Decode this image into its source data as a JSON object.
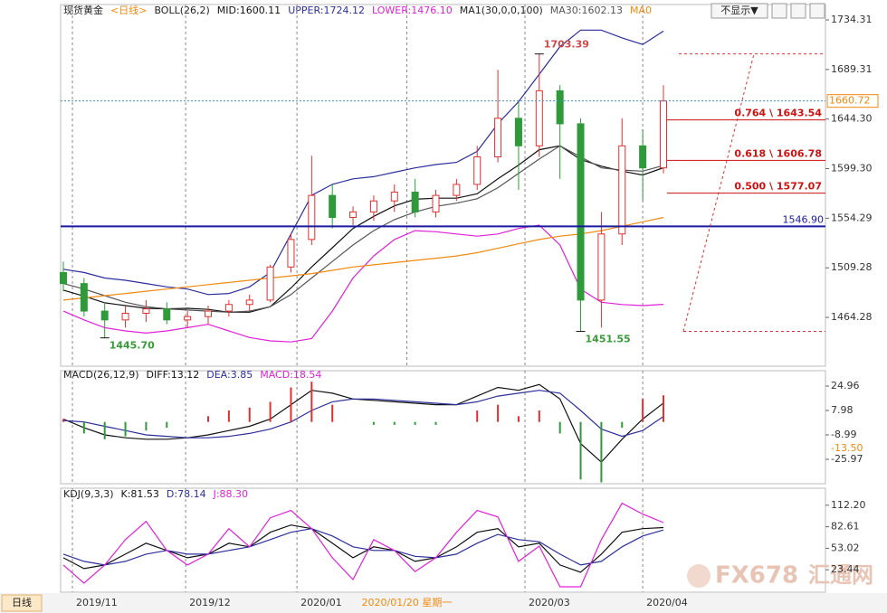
{
  "toolbar": {
    "hide_button": "不显示▼",
    "period_tab": "日线"
  },
  "watermark": {
    "brand": "FX678",
    "cn": "汇通网"
  },
  "chart_data": [
    {
      "type": "candlestick",
      "title": "现货黄金",
      "subtitle": "<日线>",
      "indicators": [
        "BOLL(26,2)",
        "MA1(30,0,0,100)"
      ],
      "x": [
        0,
        1,
        2,
        3,
        4,
        5,
        6,
        7,
        8,
        9,
        10,
        11,
        12,
        13,
        14,
        15,
        16,
        17,
        18,
        19,
        20,
        21,
        22,
        23,
        24,
        25,
        26,
        27,
        28,
        29
      ],
      "xlim": [
        -0.13,
        36.83
      ],
      "xticks": [
        {
          "value": 0.44,
          "label": "2019/11"
        },
        {
          "value": 5.91,
          "label": "2019/12"
        },
        {
          "value": 11.29,
          "label": "2020/01"
        },
        {
          "value": 22.31,
          "label": "2020/03"
        },
        {
          "value": 28.0,
          "label": "2020/04"
        }
      ],
      "cursor": {
        "x": 16.6,
        "label": "2020/01/20 星期一"
      },
      "ylim": [
        1420,
        1748.26
      ],
      "yticks": [
        1734.31,
        1689.31,
        {
          "value": 1644.3,
          "label": "1644.30"
        },
        {
          "value": 1599.3,
          "label": "1599.30"
        },
        1554.29,
        1509.28,
        1464.28
      ],
      "candles": {
        "up_color": "#e03030",
        "down_color": "#2e9a3a",
        "open": [
          1505,
          1495,
          1470,
          1462,
          1468,
          1472,
          1462,
          1465,
          1470,
          1476,
          1480,
          1510,
          1535,
          1575,
          1555,
          1560,
          1570,
          1578,
          1560,
          1575,
          1585,
          1610,
          1645,
          1620,
          1670,
          1640,
          1480,
          1540,
          1620,
          1600
        ],
        "high": [
          1515,
          1500,
          1478,
          1475,
          1480,
          1478,
          1470,
          1475,
          1480,
          1485,
          1512,
          1540,
          1611,
          1585,
          1565,
          1575,
          1585,
          1590,
          1580,
          1590,
          1620,
          1689,
          1660,
          1703.39,
          1675,
          1645,
          1560,
          1645,
          1635,
          1675
        ],
        "low": [
          1488,
          1465,
          1445.7,
          1455,
          1460,
          1458,
          1455,
          1458,
          1465,
          1470,
          1478,
          1505,
          1530,
          1545,
          1548,
          1552,
          1560,
          1555,
          1555,
          1570,
          1580,
          1605,
          1580,
          1610,
          1590,
          1451.55,
          1455,
          1530,
          1570,
          1595
        ],
        "close": [
          1495,
          1470,
          1462,
          1468,
          1472,
          1462,
          1465,
          1470,
          1476,
          1480,
          1510,
          1535,
          1575,
          1555,
          1560,
          1570,
          1578,
          1560,
          1575,
          1585,
          1610,
          1645,
          1620,
          1670,
          1640,
          1480,
          1540,
          1620,
          1600,
          1660.72
        ]
      },
      "series": [
        {
          "name": "MID:1600.11",
          "color": "#111111",
          "values": [
            1489,
            1483.5,
            1477.5,
            1475,
            1472.5,
            1472,
            1472.5,
            1471.5,
            1469,
            1469,
            1474,
            1491,
            1510,
            1527.5,
            1545,
            1556,
            1565.5,
            1571.5,
            1572.5,
            1572.5,
            1576.5,
            1590,
            1602.5,
            1616.5,
            1620,
            1607.5,
            1601.5,
            1597,
            1593.5,
            1600.11
          ]
        },
        {
          "name": "UPPER:1724.12",
          "color": "#2b2f9a",
          "values": [
            1508,
            1505,
            1500,
            1498,
            1495,
            1492,
            1490,
            1485,
            1486,
            1492,
            1505,
            1540,
            1575,
            1585,
            1590,
            1592,
            1596,
            1600,
            1603,
            1605,
            1615,
            1640,
            1660,
            1685,
            1710,
            1725,
            1725,
            1718,
            1712,
            1724.12
          ]
        },
        {
          "name": "LOWER:1476.10",
          "color": "#e020d8",
          "values": [
            1470,
            1462,
            1455,
            1452,
            1450,
            1452,
            1455,
            1458,
            1452,
            1446,
            1443,
            1442,
            1445,
            1470,
            1500,
            1520,
            1535,
            1543,
            1542,
            1540,
            1538,
            1540,
            1545,
            1548,
            1530,
            1490,
            1478,
            1476,
            1475,
            1476.1
          ]
        },
        {
          "name": "MA30:1602.13",
          "color": "#555555",
          "values": [
            1495,
            1490,
            1484,
            1478,
            1474,
            1472,
            1471,
            1470,
            1469,
            1470,
            1474,
            1485,
            1500,
            1515,
            1530,
            1543,
            1553,
            1560,
            1565,
            1568,
            1572,
            1582,
            1595,
            1608,
            1620,
            1610,
            1600,
            1598,
            1597,
            1602.13
          ]
        },
        {
          "name": "MA0",
          "color": "#f08a10",
          "values": [
            1480,
            1482,
            1484,
            1486,
            1488,
            1490,
            1492,
            1494,
            1496,
            1498,
            1500,
            1502,
            1504,
            1507,
            1510,
            1512,
            1514,
            1516,
            1518,
            1520,
            1523,
            1527,
            1531,
            1535,
            1538,
            1540,
            1543,
            1547,
            1551,
            1555
          ]
        }
      ],
      "levels": [
        {
          "value": 1643.54,
          "label": "0.764 \\ 1643.54",
          "color": "#cc1111"
        },
        {
          "value": 1606.78,
          "label": "0.618 \\ 1606.78",
          "color": "#cc1111"
        },
        {
          "value": 1577.07,
          "label": "0.500 \\ 1577.07",
          "color": "#cc1111"
        }
      ],
      "support": {
        "value": 1546.9,
        "label": "1546.90",
        "color": "#1a1aa0"
      },
      "last_price": {
        "value": 1660.72,
        "label": "1660.72",
        "color": "#f08a10"
      },
      "annotations": [
        {
          "x": 23,
          "value": 1703.39,
          "label": "1703.39",
          "color": "#d04848"
        },
        {
          "x": 2,
          "value": 1445.7,
          "label": "1445.70",
          "color": "#3a9a3a"
        },
        {
          "x": 25,
          "value": 1451.55,
          "label": "1451.55",
          "color": "#3a9a3a"
        }
      ]
    },
    {
      "type": "macd",
      "title": "MACD(26,12,9)",
      "ylim": [
        -42.95,
        35.65
      ],
      "yticks": [
        24.96,
        7.98,
        -8.99,
        -25.97
      ],
      "marker": {
        "value": -13.5,
        "label": "-13.50",
        "color": "#f08a10"
      },
      "series": [
        {
          "name": "DIFF:13.12",
          "color": "#111111",
          "values": [
            2,
            -4,
            -9,
            -11,
            -12,
            -12,
            -11,
            -9,
            -6,
            -3,
            2,
            12,
            22,
            20,
            16,
            15,
            14,
            13,
            12,
            12,
            18,
            24,
            22,
            26,
            16,
            -15,
            -28,
            -12,
            2,
            13.12
          ]
        },
        {
          "name": "DEA:3.85",
          "color": "#2b2f9a",
          "values": [
            1,
            0,
            -3,
            -6,
            -9,
            -10,
            -11,
            -11,
            -10,
            -8,
            -5,
            0,
            8,
            14,
            16,
            16,
            15,
            14,
            13,
            12,
            14,
            18,
            20,
            22,
            20,
            8,
            -5,
            -10,
            -6,
            3.85
          ]
        },
        {
          "name": "MACD:18.54",
          "color": "#e020d8",
          "type": "bar",
          "up_color": "#e03030",
          "down_color": "#2e9a3a",
          "values": [
            2,
            -8,
            -12,
            -10,
            -6,
            -4,
            0,
            4,
            8,
            10,
            14,
            24,
            28,
            12,
            0,
            -2,
            -2,
            -2,
            -2,
            0,
            8,
            12,
            4,
            8,
            -8,
            -40,
            -42,
            -4,
            16,
            18.54
          ]
        }
      ]
    },
    {
      "type": "kdj",
      "title": "KDJ(9,3,3)",
      "ylim": [
        -7.4,
        135.6
      ],
      "yticks": [
        {
          "value": 112.2,
          "label": "112.20"
        },
        82.61,
        53.02,
        23.44
      ],
      "series": [
        {
          "name": "K:81.53",
          "color": "#111111",
          "values": [
            40,
            25,
            30,
            45,
            60,
            50,
            40,
            45,
            60,
            55,
            75,
            85,
            80,
            60,
            40,
            55,
            50,
            35,
            40,
            55,
            75,
            80,
            55,
            60,
            30,
            20,
            45,
            75,
            80,
            81.53
          ]
        },
        {
          "name": "D:78.14",
          "color": "#2b2f9a",
          "values": [
            45,
            35,
            30,
            35,
            45,
            50,
            45,
            45,
            50,
            55,
            65,
            75,
            80,
            70,
            55,
            50,
            50,
            42,
            40,
            45,
            60,
            72,
            65,
            62,
            45,
            30,
            35,
            55,
            70,
            78.14
          ]
        },
        {
          "name": "J:88.30",
          "color": "#e020d8",
          "values": [
            30,
            5,
            30,
            65,
            90,
            50,
            30,
            45,
            80,
            55,
            95,
            105,
            80,
            40,
            10,
            65,
            50,
            21,
            40,
            75,
            105,
            96,
            35,
            56,
            0,
            0,
            65,
            115,
            100,
            88.3
          ]
        }
      ]
    }
  ]
}
